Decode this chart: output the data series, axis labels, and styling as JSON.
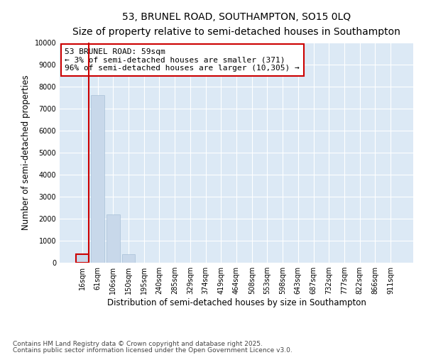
{
  "title": "53, BRUNEL ROAD, SOUTHAMPTON, SO15 0LQ",
  "subtitle": "Size of property relative to semi-detached houses in Southampton",
  "xlabel": "Distribution of semi-detached houses by size in Southampton",
  "ylabel": "Number of semi-detached properties",
  "categories": [
    "16sqm",
    "61sqm",
    "106sqm",
    "150sqm",
    "195sqm",
    "240sqm",
    "285sqm",
    "329sqm",
    "374sqm",
    "419sqm",
    "464sqm",
    "508sqm",
    "553sqm",
    "598sqm",
    "643sqm",
    "687sqm",
    "732sqm",
    "777sqm",
    "822sqm",
    "866sqm",
    "911sqm"
  ],
  "values": [
    371,
    7600,
    2200,
    380,
    0,
    0,
    0,
    0,
    0,
    0,
    0,
    0,
    0,
    0,
    0,
    0,
    0,
    0,
    0,
    0,
    0
  ],
  "bar_color": "#c8d8ea",
  "bar_edge_color": "#a8c0d8",
  "highlight_bar_index": 0,
  "highlight_color": "#cc0000",
  "annotation_line1": "53 BRUNEL ROAD: 59sqm",
  "annotation_line2": "← 3% of semi-detached houses are smaller (371)",
  "annotation_line3": "96% of semi-detached houses are larger (10,305) →",
  "annotation_box_color": "#ffffff",
  "annotation_box_edge": "#cc0000",
  "ylim": [
    0,
    10000
  ],
  "yticks": [
    0,
    1000,
    2000,
    3000,
    4000,
    5000,
    6000,
    7000,
    8000,
    9000,
    10000
  ],
  "bg_color": "#ffffff",
  "plot_bg_color": "#dce9f5",
  "grid_color": "#ffffff",
  "footer_line1": "Contains HM Land Registry data © Crown copyright and database right 2025.",
  "footer_line2": "Contains public sector information licensed under the Open Government Licence v3.0.",
  "title_fontsize": 10,
  "subtitle_fontsize": 9,
  "annotation_fontsize": 8,
  "tick_fontsize": 7,
  "label_fontsize": 8.5,
  "footer_fontsize": 6.5
}
